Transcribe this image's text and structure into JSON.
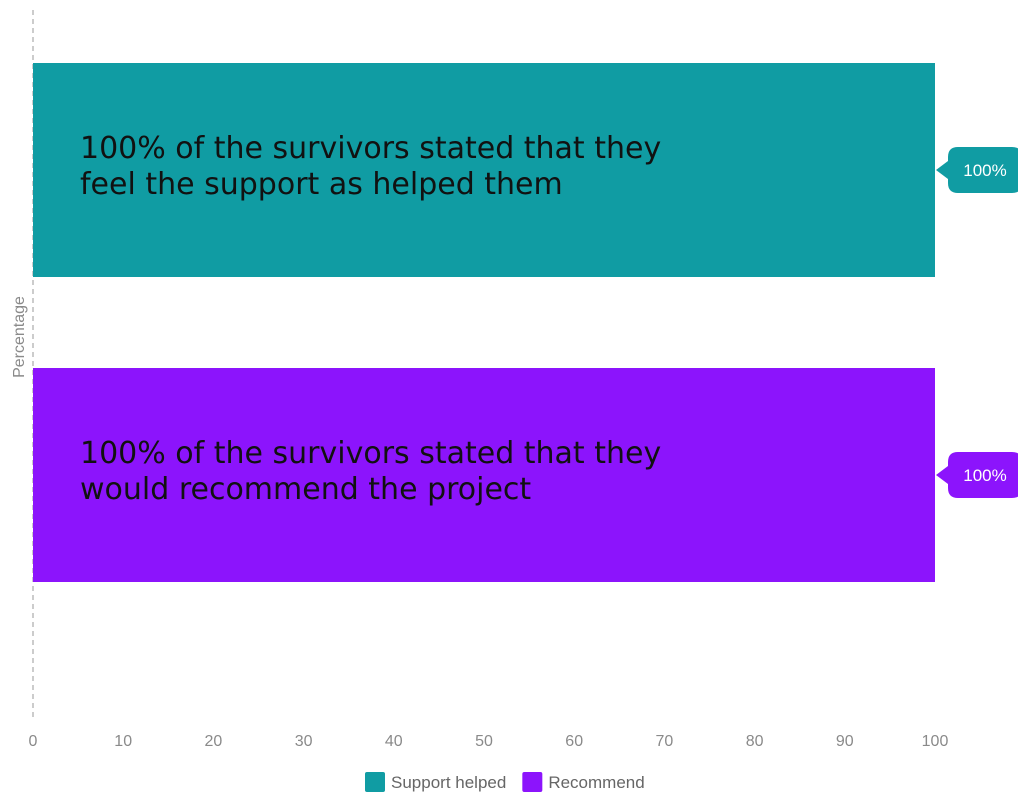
{
  "chart_data": {
    "type": "bar",
    "orientation": "horizontal",
    "ylabel": "Percentage",
    "xlim": [
      0,
      100
    ],
    "xticks": [
      0,
      10,
      20,
      30,
      40,
      50,
      60,
      70,
      80,
      90,
      100
    ],
    "grid": false,
    "legend_position": "bottom",
    "series": [
      {
        "name": "Support helped",
        "value": 100,
        "color": "#109ca3",
        "data_label": "100%",
        "annotation": [
          "100% of the survivors stated that they",
          "feel the support as helped them"
        ]
      },
      {
        "name": "Recommend",
        "value": 100,
        "color": "#8c14fc",
        "data_label": "100%",
        "annotation": [
          "100% of the survivors stated that they",
          "would recommend the project"
        ]
      }
    ]
  }
}
